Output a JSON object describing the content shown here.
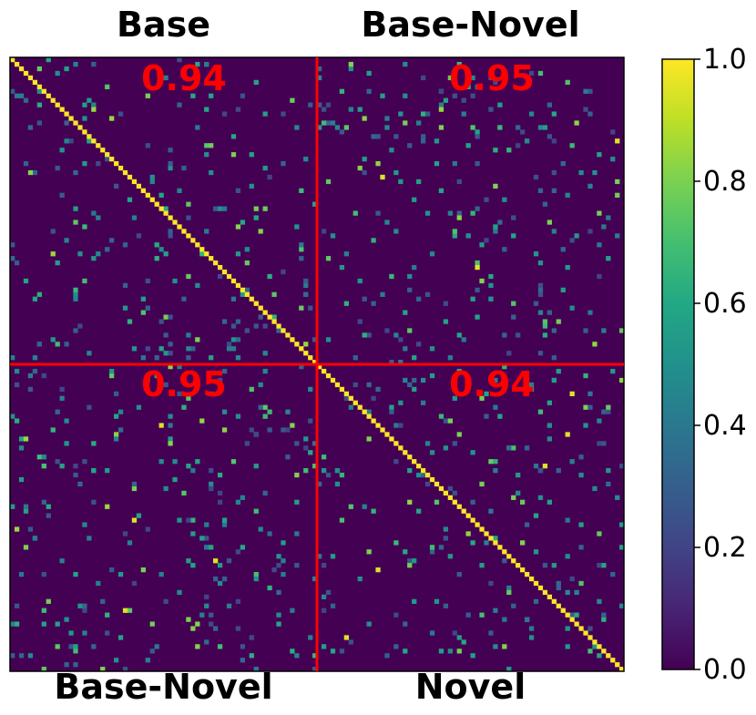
{
  "chart_data": {
    "type": "heatmap",
    "grid_size": 136,
    "colormap": "viridis",
    "background_value": 0.0,
    "diagonal_value": 1.0,
    "split_index": 68,
    "split_line_color": "#ff0000",
    "score_color": "#ff0000",
    "quadrant_labels": {
      "top_left": "Base",
      "top_right": "Base-Novel",
      "bottom_left": "Base-Novel",
      "bottom_right": "Novel"
    },
    "quadrant_scores": {
      "top_left": "0.94",
      "top_right": "0.95",
      "bottom_left": "0.95",
      "bottom_right": "0.94"
    },
    "colorbar": {
      "range": [
        0.0,
        1.0
      ],
      "ticks": [
        "0.0",
        "0.2",
        "0.4",
        "0.6",
        "0.8",
        "1.0"
      ]
    },
    "offdiagonal_values_note_free": true,
    "sample_cells": [
      {
        "row": 3,
        "col": 10,
        "value": 0.5
      },
      {
        "row": 8,
        "col": 40,
        "value": 0.6
      },
      {
        "row": 18,
        "col": 134,
        "value": 0.95
      },
      {
        "row": 26,
        "col": 82,
        "value": 0.95
      },
      {
        "row": 46,
        "col": 103,
        "value": 0.95
      },
      {
        "row": 74,
        "col": 124,
        "value": 0.95
      },
      {
        "row": 81,
        "col": 33,
        "value": 0.95
      },
      {
        "row": 83,
        "col": 123,
        "value": 0.95
      },
      {
        "row": 102,
        "col": 27,
        "value": 0.95
      },
      {
        "row": 111,
        "col": 45,
        "value": 0.95
      },
      {
        "row": 113,
        "col": 81,
        "value": 0.95
      },
      {
        "row": 122,
        "col": 25,
        "value": 0.95
      },
      {
        "row": 128,
        "col": 74,
        "value": 0.95
      },
      {
        "row": 90,
        "col": 118,
        "value": 0.95
      }
    ]
  }
}
